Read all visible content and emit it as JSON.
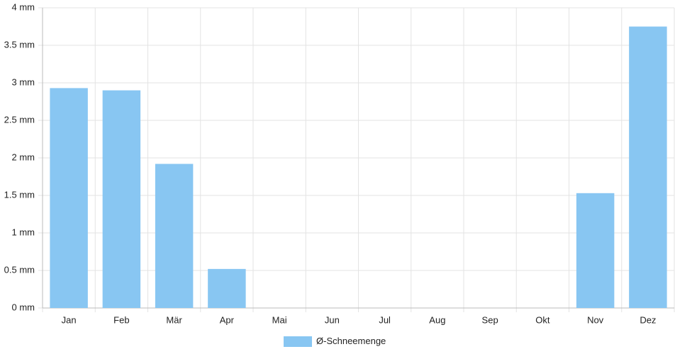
{
  "chart_data": {
    "type": "bar",
    "categories": [
      "Jan",
      "Feb",
      "Mär",
      "Apr",
      "Mai",
      "Jun",
      "Jul",
      "Aug",
      "Sep",
      "Okt",
      "Nov",
      "Dez"
    ],
    "series": [
      {
        "name": "Ø-Schneemenge",
        "color": "#88c6f2",
        "values": [
          2.93,
          2.9,
          1.92,
          0.52,
          0,
          0,
          0,
          0,
          0,
          0,
          1.53,
          3.75
        ]
      }
    ],
    "ylim": [
      0,
      4
    ],
    "yticks": [
      {
        "value": 0,
        "label": "0 mm"
      },
      {
        "value": 0.5,
        "label": "0.5 mm"
      },
      {
        "value": 1,
        "label": "1 mm"
      },
      {
        "value": 1.5,
        "label": "1.5 mm"
      },
      {
        "value": 2,
        "label": "2 mm"
      },
      {
        "value": 2.5,
        "label": "2.5 mm"
      },
      {
        "value": 3,
        "label": "3 mm"
      },
      {
        "value": 3.5,
        "label": "3.5 mm"
      },
      {
        "value": 4,
        "label": "4 mm"
      }
    ],
    "grid": true,
    "legend": "bottom"
  }
}
